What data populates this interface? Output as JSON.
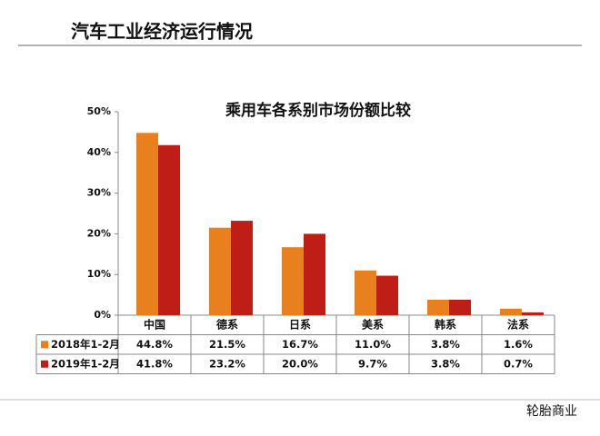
{
  "header": {
    "title": "汽车工业经济运行情况"
  },
  "chart_data": {
    "type": "bar",
    "title": "乘用车各系别市场份额比较",
    "categories": [
      "中国",
      "德系",
      "日系",
      "美系",
      "韩系",
      "法系"
    ],
    "series": [
      {
        "name": "2018年1-2月",
        "color": "#e8801e",
        "values": [
          44.8,
          21.5,
          16.7,
          11.0,
          3.8,
          1.6
        ],
        "value_labels": [
          "44.8%",
          "21.5%",
          "16.7%",
          "11.0%",
          "3.8%",
          "1.6%"
        ]
      },
      {
        "name": "2019年1-2月",
        "color": "#be1e16",
        "values": [
          41.8,
          23.2,
          20.0,
          9.7,
          3.8,
          0.7
        ],
        "value_labels": [
          "41.8%",
          "23.2%",
          "20.0%",
          "9.7%",
          "3.8%",
          "0.7%"
        ]
      }
    ],
    "ylim": [
      0,
      50
    ],
    "yticks": [
      {
        "value": 0,
        "label": "0%"
      },
      {
        "value": 10,
        "label": "10%"
      },
      {
        "value": 20,
        "label": "20%"
      },
      {
        "value": 30,
        "label": "30%"
      },
      {
        "value": 40,
        "label": "40%"
      },
      {
        "value": 50,
        "label": "50%"
      }
    ]
  },
  "watermark": "轮胎商业"
}
